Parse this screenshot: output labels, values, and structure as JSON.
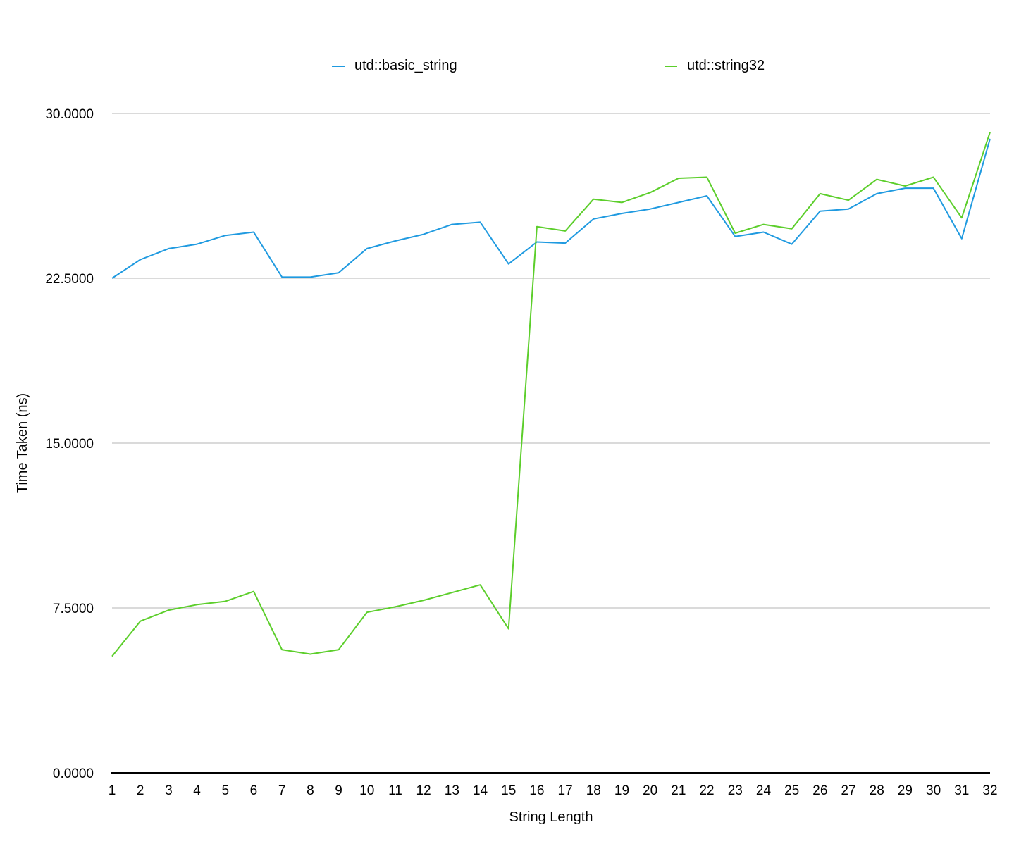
{
  "chart_data": {
    "type": "line",
    "xlabel": "String Length",
    "ylabel": "Time Taken (ns)",
    "x": [
      1,
      2,
      3,
      4,
      5,
      6,
      7,
      8,
      9,
      10,
      11,
      12,
      13,
      14,
      15,
      16,
      17,
      18,
      19,
      20,
      21,
      22,
      23,
      24,
      25,
      26,
      27,
      28,
      29,
      30,
      31,
      32
    ],
    "x_tick_labels": [
      "1",
      "2",
      "3",
      "4",
      "5",
      "6",
      "7",
      "8",
      "9",
      "10",
      "11",
      "12",
      "13",
      "14",
      "15",
      "16",
      "17",
      "18",
      "19",
      "20",
      "21",
      "22",
      "23",
      "24",
      "25",
      "26",
      "27",
      "28",
      "29",
      "30",
      "31",
      "32"
    ],
    "ylim": [
      0,
      30
    ],
    "y_ticks": [
      0,
      7.5,
      15,
      22.5,
      30
    ],
    "y_tick_labels": [
      "0.0000",
      "7.5000",
      "15.0000",
      "22.5000",
      "30.0000"
    ],
    "grid": true,
    "legend_position": "top",
    "series": [
      {
        "name": "utd::basic_string",
        "color": "#1f9ae0",
        "values": [
          22.5,
          23.35,
          23.85,
          24.05,
          24.45,
          24.6,
          22.55,
          22.55,
          22.75,
          23.85,
          24.2,
          24.5,
          24.95,
          25.05,
          23.15,
          24.15,
          24.1,
          25.2,
          25.45,
          25.65,
          25.95,
          26.25,
          24.4,
          24.6,
          24.05,
          25.55,
          25.65,
          26.35,
          26.6,
          26.6,
          24.3,
          28.85
        ]
      },
      {
        "name": "utd::string32",
        "color": "#5cce2b",
        "values": [
          5.3,
          6.9,
          7.4,
          7.65,
          7.8,
          8.25,
          5.6,
          5.4,
          5.6,
          7.3,
          7.55,
          7.85,
          8.2,
          8.55,
          6.55,
          24.85,
          24.65,
          26.1,
          25.95,
          26.4,
          27.05,
          27.1,
          24.55,
          24.95,
          24.75,
          26.35,
          26.05,
          27.0,
          26.7,
          27.1,
          25.25,
          29.15
        ]
      }
    ]
  }
}
